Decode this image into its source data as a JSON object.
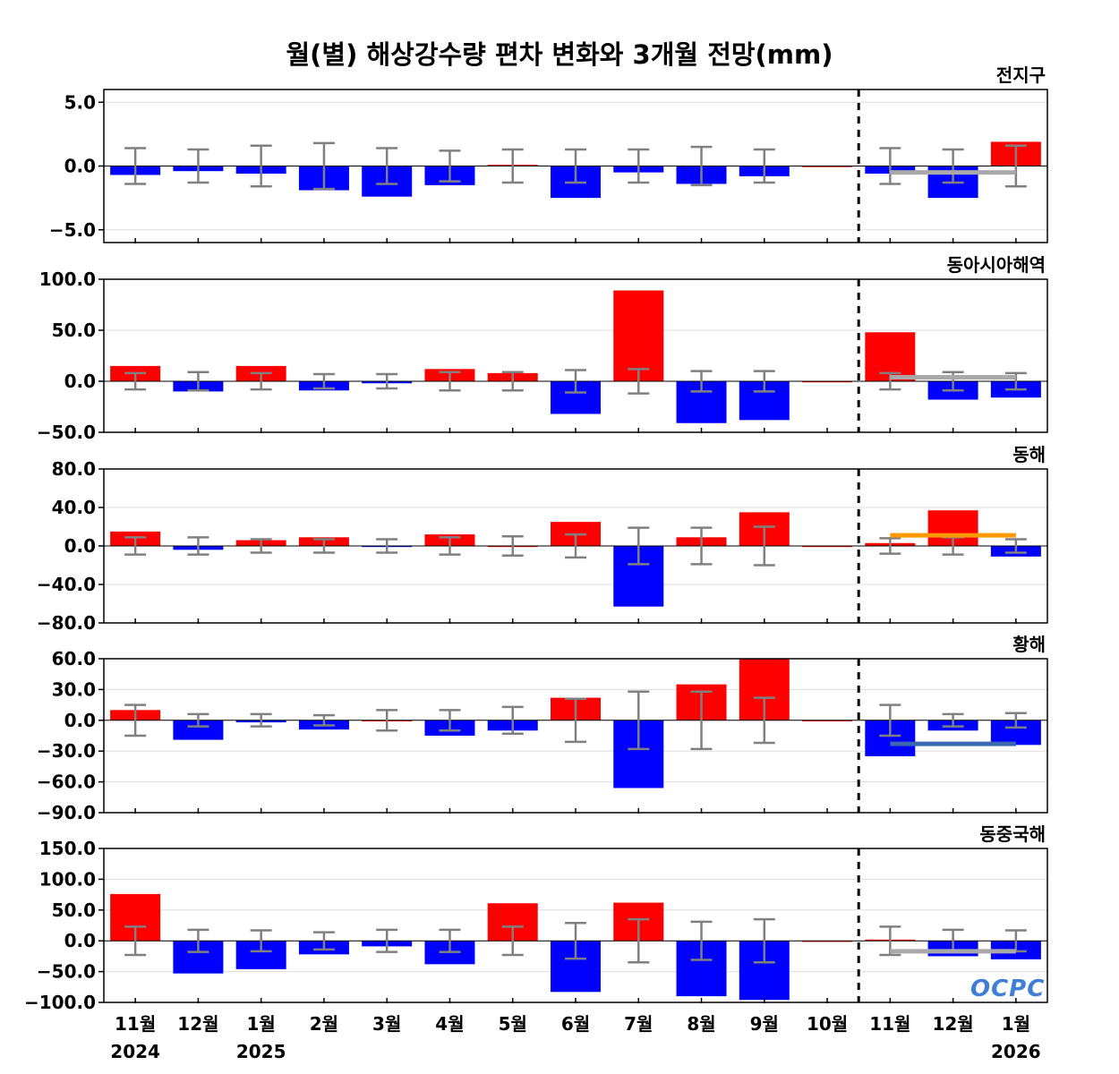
{
  "title": "월(별) 해상강수량 편차 변화와 3개월 전망(mm)",
  "logo_text": "OCPC",
  "colors": {
    "positive": "#ff0000",
    "negative": "#0000ff",
    "error_bar": "#808080",
    "forecast_gray": "#a9a9a9",
    "forecast_orange": "#ff9900",
    "forecast_blue": "#3a67b0",
    "divider": "#000000"
  },
  "x_axis": {
    "months": [
      "11월",
      "12월",
      "1월",
      "2월",
      "3월",
      "4월",
      "5월",
      "6월",
      "7월",
      "8월",
      "9월",
      "10월",
      "11월",
      "12월",
      "1월"
    ],
    "year_labels": [
      {
        "index": 0,
        "text": "2024"
      },
      {
        "index": 2,
        "text": "2025"
      },
      {
        "index": 14,
        "text": "2026"
      }
    ],
    "forecast_divider_after_index": 11
  },
  "chart_data": [
    {
      "type": "bar",
      "title": "전지구",
      "ylim": [
        -6,
        6
      ],
      "yticks": [
        5.0,
        0.0,
        -5.0
      ],
      "tick_labels": [
        "5.0",
        "0.0",
        "−5.0"
      ],
      "values": [
        -0.7,
        -0.4,
        -0.6,
        -1.9,
        -2.4,
        -1.5,
        0.1,
        -2.5,
        -0.5,
        -1.4,
        -0.8,
        0.0,
        -0.6,
        -2.5,
        1.9
      ],
      "error_bars": [
        1.4,
        1.3,
        1.6,
        1.8,
        1.4,
        1.2,
        1.3,
        1.3,
        1.3,
        1.5,
        1.3,
        null,
        1.4,
        1.3,
        1.6
      ],
      "forecast_line": {
        "from": 12,
        "to": 14,
        "value": -0.5,
        "color": "gray"
      }
    },
    {
      "type": "bar",
      "title": "동아시아해역",
      "ylim": [
        -50,
        100
      ],
      "yticks": [
        100.0,
        50.0,
        0.0,
        -50.0
      ],
      "tick_labels": [
        "100.0",
        "50.0",
        "0.0",
        "−50.0"
      ],
      "values": [
        15,
        -10,
        15,
        -9,
        -2,
        12,
        8,
        -32,
        89,
        -41,
        -38,
        0,
        48,
        -18,
        -16
      ],
      "error_bars": [
        8,
        9,
        8,
        7,
        7,
        9,
        9,
        11,
        12,
        10,
        10,
        null,
        8,
        9,
        8
      ],
      "forecast_line": {
        "from": 12,
        "to": 14,
        "value": 4,
        "color": "gray"
      }
    },
    {
      "type": "bar",
      "title": "동해",
      "ylim": [
        -80,
        80
      ],
      "yticks": [
        80.0,
        40.0,
        0.0,
        -40.0,
        -80.0
      ],
      "tick_labels": [
        "80.0",
        "40.0",
        "0.0",
        "−40.0",
        "−80.0"
      ],
      "values": [
        15,
        -4,
        6,
        9,
        -1,
        12,
        0,
        25,
        -63,
        9,
        35,
        0,
        3,
        37,
        -11
      ],
      "error_bars": [
        9,
        9,
        7,
        7,
        7,
        9,
        10,
        12,
        19,
        19,
        20,
        null,
        8,
        9,
        7
      ],
      "forecast_line": {
        "from": 12,
        "to": 14,
        "value": 11,
        "color": "orange"
      }
    },
    {
      "type": "bar",
      "title": "황해",
      "ylim": [
        -90,
        60
      ],
      "yticks": [
        60.0,
        30.0,
        0.0,
        -30.0,
        -60.0,
        -90.0
      ],
      "tick_labels": [
        "60.0",
        "30.0",
        "0.0",
        "−30.0",
        "−60.0",
        "−90.0"
      ],
      "values": [
        10,
        -19,
        -2,
        -9,
        0,
        -15,
        -10,
        22,
        -66,
        35,
        60,
        0,
        -35,
        -10,
        -24
      ],
      "error_bars": [
        15,
        6,
        6,
        5,
        10,
        10,
        13,
        21,
        28,
        28,
        22,
        null,
        15,
        6,
        7
      ],
      "forecast_line": {
        "from": 12,
        "to": 14,
        "value": -23,
        "color": "blue"
      }
    },
    {
      "type": "bar",
      "title": "동중국해",
      "ylim": [
        -100,
        150
      ],
      "yticks": [
        150.0,
        100.0,
        50.0,
        0.0,
        -50.0,
        -100.0
      ],
      "tick_labels": [
        "150.0",
        "100.0",
        "50.0",
        "0.0",
        "−50.0",
        "−100.0"
      ],
      "values": [
        76,
        -53,
        -46,
        -22,
        -9,
        -38,
        61,
        -83,
        62,
        -90,
        -96,
        0,
        2,
        -25,
        -30
      ],
      "error_bars": [
        23,
        18,
        17,
        14,
        18,
        18,
        23,
        29,
        35,
        31,
        35,
        null,
        23,
        18,
        17
      ],
      "forecast_line": {
        "from": 12,
        "to": 14,
        "value": -17,
        "color": "gray"
      }
    }
  ]
}
